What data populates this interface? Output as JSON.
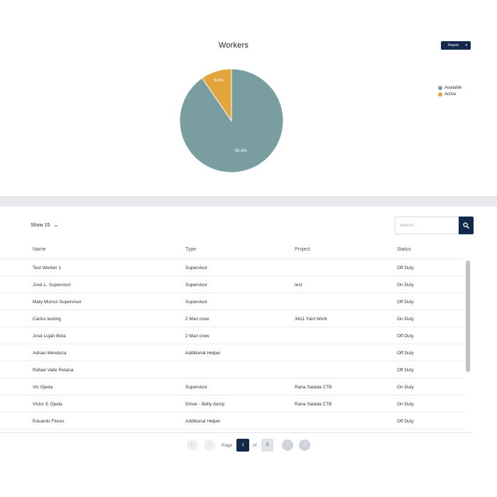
{
  "chart_data": {
    "type": "pie",
    "title": "Workers",
    "slices": [
      {
        "label": "Available",
        "value": 90.4,
        "display": "90.4%",
        "color": "#7a9e9f"
      },
      {
        "label": "Active",
        "value": 9.6,
        "display": "9.6%",
        "color": "#e1a53c"
      }
    ],
    "legend_position": "right"
  },
  "header": {
    "report_label": "Report"
  },
  "table": {
    "show_label": "Show 15",
    "search_placeholder": "Search...",
    "columns": [
      "Name",
      "Type",
      "Project",
      "Status"
    ],
    "rows": [
      [
        "Test Worker 1",
        "Supervisor",
        "",
        "Off Duty"
      ],
      [
        "José L. Supervisor",
        "Supervisor",
        "test",
        "On Duty"
      ],
      [
        "Maty Munoz-Supervisor",
        "Supervisor",
        "",
        "Off Duty"
      ],
      [
        "Carlos testing",
        "2 Man crew",
        "3411 Yard Work",
        "On Duty"
      ],
      [
        "José Luján Beta",
        "2 Man crew",
        "",
        "Off Duty"
      ],
      [
        "Adrian Mendoza",
        "Additional Helper",
        "",
        "Off Duty"
      ],
      [
        "Rafael Valle Retana",
        "",
        "",
        "Off Duty"
      ],
      [
        "Vic Ojeda",
        "Supervisor",
        "Rana Salada CTB",
        "On Duty"
      ],
      [
        "Victor E Ojeda",
        "Driver - Belly dump",
        "Rana Salada CTB",
        "On Duty"
      ],
      [
        "Eduardo Flores",
        "Additional Helper",
        "",
        "Off Duty"
      ]
    ]
  },
  "pagination": {
    "page_label": "Page",
    "current_page": "1",
    "of_label": "of",
    "total_pages": "5"
  }
}
